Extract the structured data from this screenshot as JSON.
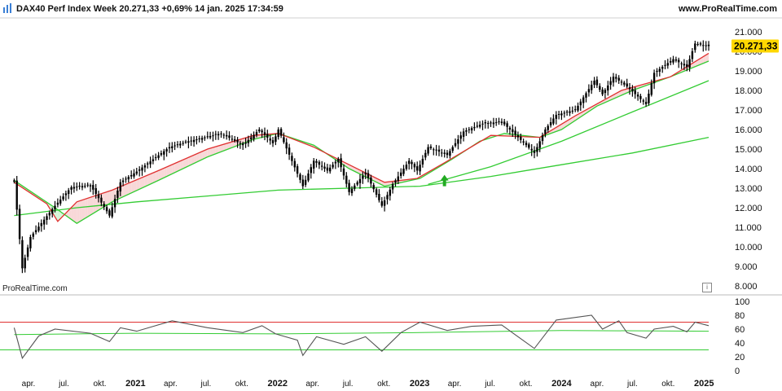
{
  "header": {
    "title": "DAX40 Perf Index Week 20.271,33 +0,69% 14 jan. 2025 17:34:59",
    "site": "www.ProRealTime.com",
    "logo_icon": "prorealtime-logo-icon"
  },
  "watermark": "ProRealTime.com",
  "info_icon": "info-icon",
  "colors": {
    "candles": "#000000",
    "ma_fast": "#e03030",
    "ma_mid": "#33cc33",
    "ma_long": "#33cc33",
    "fill_up": "#d8f5d8",
    "fill_down": "#f8d8d8",
    "last_price_bg": "#ffd700",
    "osc_line": "#555555",
    "osc_upper": "#e03030",
    "osc_lower": "#33cc33",
    "arrow": "#22aa22"
  },
  "chart_data": [
    {
      "type": "candlestick",
      "title": "DAX40 Perf Index Week",
      "last_price_label": "20.271,33",
      "y_ticks": [
        "21.000",
        "20.000",
        "19.000",
        "18.000",
        "17.000",
        "16.000",
        "15.000",
        "14.000",
        "13.000",
        "12.000",
        "11.000",
        "10.000",
        "9.000",
        "8.000"
      ],
      "ylim": [
        8000,
        21000
      ],
      "x_labels": [
        "apr.",
        "jul.",
        "okt.",
        "2021",
        "apr.",
        "jul.",
        "okt.",
        "2022",
        "apr.",
        "jul.",
        "okt.",
        "2023",
        "apr.",
        "jul.",
        "okt.",
        "2024",
        "apr.",
        "jul.",
        "okt.",
        "2025"
      ],
      "x_years": [
        "2021",
        "2022",
        "2023",
        "2024",
        "2025"
      ],
      "close": [
        {
          "d": "2020-02-24",
          "v": 13400
        },
        {
          "d": "2020-03-16",
          "v": 8900
        },
        {
          "d": "2020-04-06",
          "v": 10500
        },
        {
          "d": "2020-06-08",
          "v": 12100
        },
        {
          "d": "2020-07-20",
          "v": 13050
        },
        {
          "d": "2020-09-07",
          "v": 13150
        },
        {
          "d": "2020-10-26",
          "v": 11600
        },
        {
          "d": "2020-11-23",
          "v": 13300
        },
        {
          "d": "2021-01-04",
          "v": 13850
        },
        {
          "d": "2021-03-29",
          "v": 15100
        },
        {
          "d": "2021-05-17",
          "v": 15400
        },
        {
          "d": "2021-08-09",
          "v": 15800
        },
        {
          "d": "2021-10-04",
          "v": 15200
        },
        {
          "d": "2021-11-15",
          "v": 16000
        },
        {
          "d": "2021-12-20",
          "v": 15300
        },
        {
          "d": "2022-01-03",
          "v": 16000
        },
        {
          "d": "2022-03-07",
          "v": 13100
        },
        {
          "d": "2022-04-04",
          "v": 14400
        },
        {
          "d": "2022-05-09",
          "v": 13900
        },
        {
          "d": "2022-06-06",
          "v": 14500
        },
        {
          "d": "2022-07-04",
          "v": 12800
        },
        {
          "d": "2022-08-15",
          "v": 13800
        },
        {
          "d": "2022-09-26",
          "v": 12100
        },
        {
          "d": "2022-10-24",
          "v": 13200
        },
        {
          "d": "2022-12-05",
          "v": 14400
        },
        {
          "d": "2022-12-26",
          "v": 13900
        },
        {
          "d": "2023-01-23",
          "v": 15100
        },
        {
          "d": "2023-03-13",
          "v": 14700
        },
        {
          "d": "2023-04-24",
          "v": 15900
        },
        {
          "d": "2023-06-12",
          "v": 16300
        },
        {
          "d": "2023-07-31",
          "v": 16400
        },
        {
          "d": "2023-10-23",
          "v": 14800
        },
        {
          "d": "2023-11-20",
          "v": 16000
        },
        {
          "d": "2023-12-18",
          "v": 16750
        },
        {
          "d": "2024-02-05",
          "v": 17000
        },
        {
          "d": "2024-03-25",
          "v": 18500
        },
        {
          "d": "2024-04-15",
          "v": 17800
        },
        {
          "d": "2024-05-13",
          "v": 18700
        },
        {
          "d": "2024-06-17",
          "v": 18200
        },
        {
          "d": "2024-08-05",
          "v": 17300
        },
        {
          "d": "2024-08-26",
          "v": 18900
        },
        {
          "d": "2024-10-14",
          "v": 19600
        },
        {
          "d": "2024-11-18",
          "v": 19200
        },
        {
          "d": "2024-12-09",
          "v": 20400
        },
        {
          "d": "2025-01-13",
          "v": 20271
        }
      ],
      "ma_fast": [
        {
          "d": "2020-02-24",
          "v": 13300
        },
        {
          "d": "2020-05-18",
          "v": 12200
        },
        {
          "d": "2020-06-15",
          "v": 11300
        },
        {
          "d": "2020-08-03",
          "v": 12300
        },
        {
          "d": "2020-11-02",
          "v": 12900
        },
        {
          "d": "2021-03-01",
          "v": 13900
        },
        {
          "d": "2021-07-05",
          "v": 15000
        },
        {
          "d": "2021-11-01",
          "v": 15700
        },
        {
          "d": "2022-01-03",
          "v": 15800
        },
        {
          "d": "2022-04-04",
          "v": 15100
        },
        {
          "d": "2022-07-04",
          "v": 14200
        },
        {
          "d": "2022-10-03",
          "v": 13300
        },
        {
          "d": "2022-12-26",
          "v": 13500
        },
        {
          "d": "2023-03-06",
          "v": 14300
        },
        {
          "d": "2023-07-03",
          "v": 15700
        },
        {
          "d": "2023-11-06",
          "v": 15600
        },
        {
          "d": "2024-02-05",
          "v": 16700
        },
        {
          "d": "2024-06-03",
          "v": 18000
        },
        {
          "d": "2024-10-07",
          "v": 18700
        },
        {
          "d": "2025-01-13",
          "v": 19900
        }
      ],
      "ma_mid": [
        {
          "d": "2020-02-24",
          "v": 13400
        },
        {
          "d": "2020-06-08",
          "v": 12000
        },
        {
          "d": "2020-08-03",
          "v": 11200
        },
        {
          "d": "2020-11-02",
          "v": 12300
        },
        {
          "d": "2021-03-01",
          "v": 13400
        },
        {
          "d": "2021-07-05",
          "v": 14600
        },
        {
          "d": "2021-11-01",
          "v": 15500
        },
        {
          "d": "2022-01-03",
          "v": 15800
        },
        {
          "d": "2022-04-04",
          "v": 15200
        },
        {
          "d": "2022-07-04",
          "v": 14000
        },
        {
          "d": "2022-10-03",
          "v": 13100
        },
        {
          "d": "2023-01-02",
          "v": 13500
        },
        {
          "d": "2023-03-27",
          "v": 14500
        },
        {
          "d": "2023-06-05",
          "v": 15400
        },
        {
          "d": "2023-08-07",
          "v": 15800
        },
        {
          "d": "2023-11-06",
          "v": 15600
        },
        {
          "d": "2024-01-01",
          "v": 16000
        },
        {
          "d": "2024-04-01",
          "v": 17200
        },
        {
          "d": "2024-07-01",
          "v": 18000
        },
        {
          "d": "2024-10-07",
          "v": 18700
        },
        {
          "d": "2025-01-13",
          "v": 19500
        }
      ],
      "ma_long": [
        {
          "d": "2020-02-24",
          "v": 11600
        },
        {
          "d": "2020-08-03",
          "v": 12000
        },
        {
          "d": "2021-01-04",
          "v": 12300
        },
        {
          "d": "2021-07-05",
          "v": 12600
        },
        {
          "d": "2022-01-03",
          "v": 12900
        },
        {
          "d": "2022-07-04",
          "v": 13000
        },
        {
          "d": "2023-01-02",
          "v": 13100
        },
        {
          "d": "2023-07-03",
          "v": 13600
        },
        {
          "d": "2024-01-01",
          "v": 14200
        },
        {
          "d": "2024-07-01",
          "v": 14800
        },
        {
          "d": "2025-01-13",
          "v": 15600
        }
      ],
      "ma_long2": [
        {
          "d": "2023-01-23",
          "v": 13200
        },
        {
          "d": "2023-07-03",
          "v": 14100
        },
        {
          "d": "2024-01-01",
          "v": 15400
        },
        {
          "d": "2024-07-01",
          "v": 16900
        },
        {
          "d": "2025-01-13",
          "v": 18500
        }
      ],
      "signal_arrow": {
        "d": "2023-03-06",
        "v": 13100,
        "direction": "up"
      }
    },
    {
      "type": "line",
      "title": "",
      "y_ticks": [
        "100",
        "80",
        "60",
        "40",
        "20",
        "0"
      ],
      "ylim": [
        0,
        100
      ],
      "upper_level": 70,
      "lower_level": 30,
      "series": [
        {
          "values": [
            {
              "d": "2020-02-24",
              "v": 62
            },
            {
              "d": "2020-03-16",
              "v": 18
            },
            {
              "d": "2020-04-27",
              "v": 50
            },
            {
              "d": "2020-06-08",
              "v": 60
            },
            {
              "d": "2020-09-07",
              "v": 54
            },
            {
              "d": "2020-10-26",
              "v": 42
            },
            {
              "d": "2020-11-23",
              "v": 62
            },
            {
              "d": "2021-01-04",
              "v": 57
            },
            {
              "d": "2021-04-05",
              "v": 72
            },
            {
              "d": "2021-07-05",
              "v": 62
            },
            {
              "d": "2021-10-04",
              "v": 55
            },
            {
              "d": "2021-11-22",
              "v": 65
            },
            {
              "d": "2021-12-27",
              "v": 53
            },
            {
              "d": "2022-02-21",
              "v": 44
            },
            {
              "d": "2022-03-07",
              "v": 22
            },
            {
              "d": "2022-04-11",
              "v": 49
            },
            {
              "d": "2022-06-20",
              "v": 38
            },
            {
              "d": "2022-08-15",
              "v": 49
            },
            {
              "d": "2022-09-26",
              "v": 28
            },
            {
              "d": "2022-11-14",
              "v": 55
            },
            {
              "d": "2023-01-02",
              "v": 70
            },
            {
              "d": "2023-03-13",
              "v": 58
            },
            {
              "d": "2023-05-15",
              "v": 64
            },
            {
              "d": "2023-07-31",
              "v": 66
            },
            {
              "d": "2023-10-23",
              "v": 32
            },
            {
              "d": "2023-12-18",
              "v": 73
            },
            {
              "d": "2024-03-18",
              "v": 80
            },
            {
              "d": "2024-04-15",
              "v": 60
            },
            {
              "d": "2024-05-27",
              "v": 72
            },
            {
              "d": "2024-06-17",
              "v": 55
            },
            {
              "d": "2024-08-05",
              "v": 47
            },
            {
              "d": "2024-08-26",
              "v": 60
            },
            {
              "d": "2024-10-14",
              "v": 64
            },
            {
              "d": "2024-11-18",
              "v": 56
            },
            {
              "d": "2024-12-09",
              "v": 70
            },
            {
              "d": "2025-01-13",
              "v": 65
            }
          ]
        }
      ],
      "signal": [
        {
          "d": "2020-02-24",
          "v": 52
        },
        {
          "d": "2021-01-04",
          "v": 54
        },
        {
          "d": "2022-01-03",
          "v": 53
        },
        {
          "d": "2023-01-02",
          "v": 55
        },
        {
          "d": "2024-01-01",
          "v": 58
        },
        {
          "d": "2025-01-13",
          "v": 57
        }
      ]
    }
  ]
}
